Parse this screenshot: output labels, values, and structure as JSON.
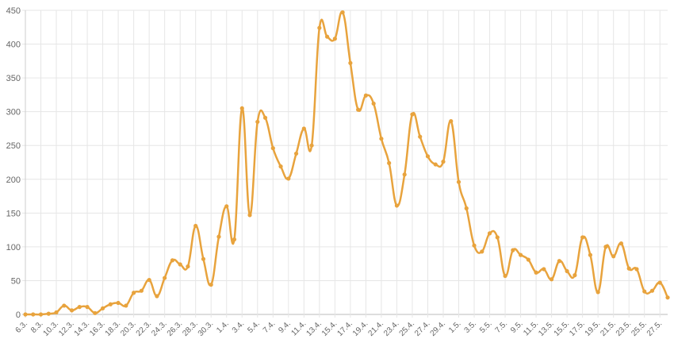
{
  "chart_data": {
    "type": "line",
    "title": "",
    "xlabel": "",
    "ylabel": "",
    "ylim": [
      0,
      450
    ],
    "yticks": [
      0,
      50,
      100,
      150,
      200,
      250,
      300,
      350,
      400,
      450
    ],
    "grid": true,
    "legend": "none",
    "series": [
      {
        "name": "",
        "color": "#E8A33D",
        "values": [
          0,
          0,
          0,
          1,
          3,
          13,
          6,
          11,
          11,
          2,
          9,
          15,
          17,
          13,
          32,
          35,
          51,
          27,
          54,
          80,
          74,
          71,
          131,
          82,
          44,
          115,
          160,
          111,
          305,
          147,
          285,
          291,
          246,
          219,
          201,
          238,
          275,
          250,
          424,
          411,
          408,
          447,
          372,
          303,
          324,
          312,
          260,
          224,
          161,
          207,
          296,
          263,
          234,
          222,
          226,
          286,
          196,
          157,
          102,
          93,
          120,
          114,
          57,
          95,
          88,
          81,
          62,
          67,
          52,
          79,
          64,
          58,
          114,
          88,
          33,
          100,
          86,
          105,
          68,
          67,
          34,
          35,
          47,
          25
        ]
      }
    ],
    "x": [
      "6.3.",
      "7.3.",
      "8.3.",
      "9.3.",
      "10.3.",
      "11.3.",
      "12.3.",
      "13.3.",
      "14.3.",
      "15.3.",
      "16.3.",
      "17.3.",
      "18.3.",
      "19.3.",
      "20.3.",
      "21.3.",
      "22.3.",
      "23.3.",
      "24.3.",
      "25.3.",
      "26.3.",
      "27.3.",
      "28.3.",
      "29.3.",
      "30.3.",
      "31.3.",
      "1.4.",
      "2.4.",
      "3.4.",
      "4.4.",
      "5.4.",
      "6.4.",
      "7.4.",
      "8.4.",
      "9.4.",
      "10.4.",
      "11.4.",
      "12.4.",
      "13.4.",
      "14.4.",
      "15.4.",
      "16.4.",
      "17.4.",
      "18.4.",
      "19.4.",
      "20.4.",
      "21.4.",
      "22.4.",
      "23.4.",
      "24.4.",
      "25.4.",
      "26.4.",
      "27.4.",
      "28.4.",
      "29.4.",
      "30.4.",
      "1.5.",
      "2.5.",
      "3.5.",
      "4.5.",
      "5.5.",
      "6.5.",
      "7.5.",
      "8.5.",
      "9.5.",
      "10.5.",
      "11.5.",
      "12.5.",
      "13.5.",
      "14.5.",
      "15.5.",
      "16.5.",
      "17.5.",
      "18.5.",
      "19.5.",
      "20.5.",
      "21.5.",
      "22.5.",
      "23.5.",
      "24.5.",
      "25.5.",
      "26.5.",
      "27.5.",
      "28.5."
    ],
    "x_label_every": 2
  }
}
